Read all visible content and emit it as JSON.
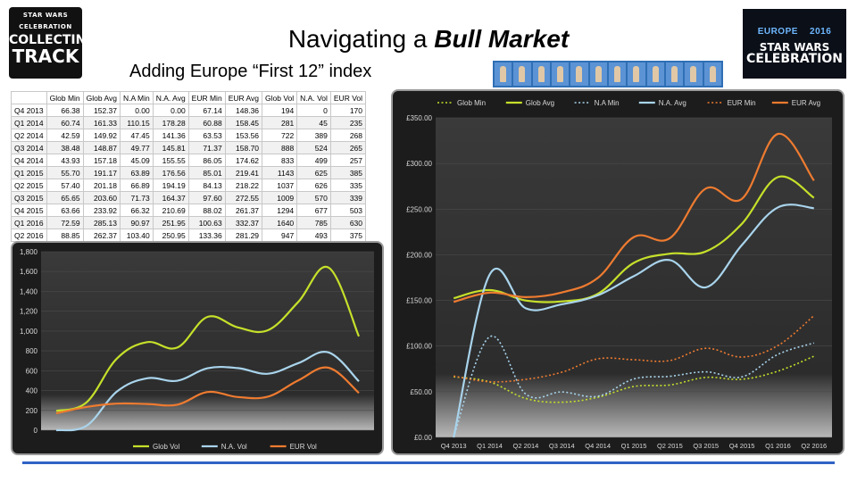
{
  "header": {
    "title_plain": "Navigating a ",
    "title_emph": "Bull Market",
    "subtitle": "Adding Europe “First 12” index",
    "logo_left": {
      "line1": "STAR WARS",
      "line2": "CELEBRATION",
      "line3": "COLLECTING",
      "line4": "TRACK"
    },
    "logo_right": {
      "europe": "EUROPE",
      "year": "2016",
      "line1": "STAR WARS",
      "line2": "CELEBRATION"
    }
  },
  "table": {
    "headers": [
      "",
      "Glob Min",
      "Glob Avg",
      "N.A Min",
      "N.A. Avg",
      "EUR Min",
      "EUR Avg",
      "Glob Vol",
      "N.A. Vol",
      "EUR Vol"
    ],
    "rows": [
      [
        "Q4 2013",
        "66.38",
        "152.37",
        "0.00",
        "0.00",
        "67.14",
        "148.36",
        "194",
        "0",
        "170"
      ],
      [
        "Q1 2014",
        "60.74",
        "161.33",
        "110.15",
        "178.28",
        "60.88",
        "158.45",
        "281",
        "45",
        "235"
      ],
      [
        "Q2 2014",
        "42.59",
        "149.92",
        "47.45",
        "141.36",
        "63.53",
        "153.56",
        "722",
        "389",
        "268"
      ],
      [
        "Q3 2014",
        "38.48",
        "148.87",
        "49.77",
        "145.81",
        "71.37",
        "158.70",
        "888",
        "524",
        "265"
      ],
      [
        "Q4 2014",
        "43.93",
        "157.18",
        "45.09",
        "155.55",
        "86.05",
        "174.62",
        "833",
        "499",
        "257"
      ],
      [
        "Q1 2015",
        "55.70",
        "191.17",
        "63.89",
        "176.56",
        "85.01",
        "219.41",
        "1143",
        "625",
        "385"
      ],
      [
        "Q2 2015",
        "57.40",
        "201.18",
        "66.89",
        "194.19",
        "84.13",
        "218.22",
        "1037",
        "626",
        "335"
      ],
      [
        "Q3 2015",
        "65.65",
        "203.60",
        "71.73",
        "164.37",
        "97.60",
        "272.55",
        "1009",
        "570",
        "339"
      ],
      [
        "Q4 2015",
        "63.66",
        "233.92",
        "66.32",
        "210.69",
        "88.02",
        "261.37",
        "1294",
        "677",
        "503"
      ],
      [
        "Q1 2016",
        "72.59",
        "285.13",
        "90.97",
        "251.95",
        "100.63",
        "332.37",
        "1640",
        "785",
        "630"
      ],
      [
        "Q2 2016",
        "88.85",
        "262.37",
        "103.40",
        "250.95",
        "133.36",
        "281.29",
        "947",
        "493",
        "375"
      ]
    ]
  },
  "chart_data": [
    {
      "type": "line",
      "title": "",
      "categories": [
        "Q4 2013",
        "Q1 2014",
        "Q2 2014",
        "Q3 2014",
        "Q4 2014",
        "Q1 2015",
        "Q2 2015",
        "Q3 2015",
        "Q4 2015",
        "Q1 2016",
        "Q2 2016"
      ],
      "show_category_labels": false,
      "yticks": [
        "0",
        "200",
        "400",
        "600",
        "800",
        "1,000",
        "1,200",
        "1,400",
        "1,600",
        "1,800"
      ],
      "ylim": [
        0,
        1800
      ],
      "series": [
        {
          "name": "Glob Vol",
          "color": "#c6e02a",
          "dash": false,
          "values": [
            194,
            281,
            722,
            888,
            833,
            1143,
            1037,
            1009,
            1294,
            1640,
            947
          ]
        },
        {
          "name": "N.A. Vol",
          "color": "#a9d4ec",
          "dash": false,
          "values": [
            0,
            45,
            389,
            524,
            499,
            625,
            626,
            570,
            677,
            785,
            493
          ]
        },
        {
          "name": "EUR Vol",
          "color": "#ee7b30",
          "dash": false,
          "values": [
            170,
            235,
            268,
            265,
            257,
            385,
            335,
            339,
            503,
            630,
            375
          ]
        }
      ],
      "legend": "bottom"
    },
    {
      "type": "line",
      "title": "",
      "categories": [
        "Q4 2013",
        "Q1 2014",
        "Q2 2014",
        "Q3 2014",
        "Q4 2014",
        "Q1 2015",
        "Q2 2015",
        "Q3 2015",
        "Q4 2015",
        "Q1 2016",
        "Q2 2016"
      ],
      "show_category_labels": true,
      "yticks": [
        "£0.00",
        "£50.00",
        "£100.00",
        "£150.00",
        "£200.00",
        "£250.00",
        "£300.00",
        "£350.00"
      ],
      "ylim": [
        0,
        350
      ],
      "series": [
        {
          "name": "Glob Min",
          "color": "#c6e02a",
          "dash": true,
          "values": [
            66.38,
            60.74,
            42.59,
            38.48,
            43.93,
            55.7,
            57.4,
            65.65,
            63.66,
            72.59,
            88.85
          ]
        },
        {
          "name": "Glob Avg",
          "color": "#c6e02a",
          "dash": false,
          "values": [
            152.37,
            161.33,
            149.92,
            148.87,
            157.18,
            191.17,
            201.18,
            203.6,
            233.92,
            285.13,
            262.37
          ]
        },
        {
          "name": "N.A Min",
          "color": "#a9d4ec",
          "dash": true,
          "values": [
            0.0,
            110.15,
            47.45,
            49.77,
            45.09,
            63.89,
            66.89,
            71.73,
            66.32,
            90.97,
            103.4
          ]
        },
        {
          "name": "N.A. Avg",
          "color": "#a9d4ec",
          "dash": false,
          "values": [
            0.0,
            178.28,
            141.36,
            145.81,
            155.55,
            176.56,
            194.19,
            164.37,
            210.69,
            251.95,
            250.95
          ]
        },
        {
          "name": "EUR Min",
          "color": "#ee7b30",
          "dash": true,
          "values": [
            67.14,
            60.88,
            63.53,
            71.37,
            86.05,
            85.01,
            84.13,
            97.6,
            88.02,
            100.63,
            133.36
          ]
        },
        {
          "name": "EUR Avg",
          "color": "#ee7b30",
          "dash": false,
          "values": [
            148.36,
            158.45,
            153.56,
            158.7,
            174.62,
            219.41,
            218.22,
            272.55,
            261.37,
            332.37,
            281.29
          ]
        }
      ],
      "legend": "top"
    }
  ]
}
